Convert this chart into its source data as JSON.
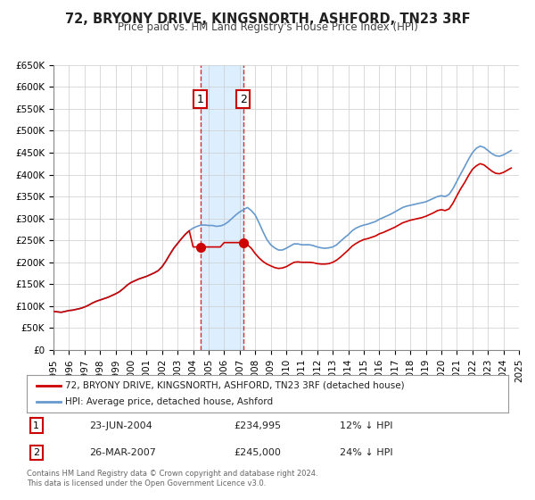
{
  "title": "72, BRYONY DRIVE, KINGSNORTH, ASHFORD, TN23 3RF",
  "subtitle": "Price paid vs. HM Land Registry's House Price Index (HPI)",
  "legend_line1": "72, BRYONY DRIVE, KINGSNORTH, ASHFORD, TN23 3RF (detached house)",
  "legend_line2": "HPI: Average price, detached house, Ashford",
  "sale1_label": "1",
  "sale1_date": "23-JUN-2004",
  "sale1_price": "£234,995",
  "sale1_hpi": "12% ↓ HPI",
  "sale1_year": 2004.47,
  "sale1_value": 234995,
  "sale2_label": "2",
  "sale2_date": "26-MAR-2007",
  "sale2_price": "£245,000",
  "sale2_hpi": "24% ↓ HPI",
  "sale2_year": 2007.23,
  "sale2_value": 245000,
  "property_color": "#cc0000",
  "hpi_color": "#6699cc",
  "background_color": "#ffffff",
  "grid_color": "#cccccc",
  "highlight_color": "#ddeeff",
  "ylim": [
    0,
    650000
  ],
  "xlim_start": 1995,
  "xlim_end": 2025,
  "yticks": [
    0,
    50000,
    100000,
    150000,
    200000,
    250000,
    300000,
    350000,
    400000,
    450000,
    500000,
    550000,
    600000,
    650000
  ],
  "ytick_labels": [
    "£0",
    "£50K",
    "£100K",
    "£150K",
    "£200K",
    "£250K",
    "£300K",
    "£350K",
    "£400K",
    "£450K",
    "£500K",
    "£550K",
    "£600K",
    "£650K"
  ],
  "copyright_text": "Contains HM Land Registry data © Crown copyright and database right 2024.\nThis data is licensed under the Open Government Licence v3.0.",
  "hpi_data_x": [
    1995.0,
    1995.25,
    1995.5,
    1995.75,
    1996.0,
    1996.25,
    1996.5,
    1996.75,
    1997.0,
    1997.25,
    1997.5,
    1997.75,
    1998.0,
    1998.25,
    1998.5,
    1998.75,
    1999.0,
    1999.25,
    1999.5,
    1999.75,
    2000.0,
    2000.25,
    2000.5,
    2000.75,
    2001.0,
    2001.25,
    2001.5,
    2001.75,
    2002.0,
    2002.25,
    2002.5,
    2002.75,
    2003.0,
    2003.25,
    2003.5,
    2003.75,
    2004.0,
    2004.25,
    2004.5,
    2004.75,
    2005.0,
    2005.25,
    2005.5,
    2005.75,
    2006.0,
    2006.25,
    2006.5,
    2006.75,
    2007.0,
    2007.25,
    2007.5,
    2007.75,
    2008.0,
    2008.25,
    2008.5,
    2008.75,
    2009.0,
    2009.25,
    2009.5,
    2009.75,
    2010.0,
    2010.25,
    2010.5,
    2010.75,
    2011.0,
    2011.25,
    2011.5,
    2011.75,
    2012.0,
    2012.25,
    2012.5,
    2012.75,
    2013.0,
    2013.25,
    2013.5,
    2013.75,
    2014.0,
    2014.25,
    2014.5,
    2014.75,
    2015.0,
    2015.25,
    2015.5,
    2015.75,
    2016.0,
    2016.25,
    2016.5,
    2016.75,
    2017.0,
    2017.25,
    2017.5,
    2017.75,
    2018.0,
    2018.25,
    2018.5,
    2018.75,
    2019.0,
    2019.25,
    2019.5,
    2019.75,
    2020.0,
    2020.25,
    2020.5,
    2020.75,
    2021.0,
    2021.25,
    2021.5,
    2021.75,
    2022.0,
    2022.25,
    2022.5,
    2022.75,
    2023.0,
    2023.25,
    2023.5,
    2023.75,
    2024.0,
    2024.25,
    2024.5
  ],
  "hpi_data_y": [
    88000,
    87000,
    86000,
    88000,
    90000,
    91000,
    93000,
    95000,
    98000,
    102000,
    107000,
    111000,
    114000,
    117000,
    120000,
    124000,
    128000,
    133000,
    140000,
    148000,
    154000,
    158000,
    162000,
    165000,
    168000,
    172000,
    176000,
    181000,
    190000,
    203000,
    218000,
    232000,
    243000,
    254000,
    264000,
    272000,
    278000,
    282000,
    285000,
    285000,
    284000,
    284000,
    282000,
    283000,
    286000,
    292000,
    300000,
    308000,
    315000,
    320000,
    325000,
    318000,
    308000,
    290000,
    270000,
    252000,
    240000,
    233000,
    228000,
    228000,
    232000,
    237000,
    242000,
    242000,
    240000,
    240000,
    240000,
    238000,
    235000,
    233000,
    232000,
    233000,
    235000,
    240000,
    248000,
    256000,
    263000,
    272000,
    278000,
    282000,
    285000,
    287000,
    290000,
    293000,
    298000,
    302000,
    306000,
    310000,
    315000,
    320000,
    325000,
    328000,
    330000,
    332000,
    334000,
    336000,
    338000,
    342000,
    346000,
    350000,
    352000,
    350000,
    355000,
    368000,
    385000,
    402000,
    418000,
    435000,
    450000,
    460000,
    465000,
    462000,
    455000,
    448000,
    443000,
    442000,
    445000,
    450000,
    455000
  ],
  "property_data_x": [
    1995.0,
    1995.25,
    1995.5,
    1995.75,
    1996.0,
    1996.25,
    1996.5,
    1996.75,
    1997.0,
    1997.25,
    1997.5,
    1997.75,
    1998.0,
    1998.25,
    1998.5,
    1998.75,
    1999.0,
    1999.25,
    1999.5,
    1999.75,
    2000.0,
    2000.25,
    2000.5,
    2000.75,
    2001.0,
    2001.25,
    2001.5,
    2001.75,
    2002.0,
    2002.25,
    2002.5,
    2002.75,
    2003.0,
    2003.25,
    2003.5,
    2003.75,
    2004.0,
    2004.25,
    2004.5,
    2004.75,
    2005.0,
    2005.25,
    2005.5,
    2005.75,
    2006.0,
    2006.25,
    2006.5,
    2006.75,
    2007.0,
    2007.25,
    2007.5,
    2007.75,
    2008.0,
    2008.25,
    2008.5,
    2008.75,
    2009.0,
    2009.25,
    2009.5,
    2009.75,
    2010.0,
    2010.25,
    2010.5,
    2010.75,
    2011.0,
    2011.25,
    2011.5,
    2011.75,
    2012.0,
    2012.25,
    2012.5,
    2012.75,
    2013.0,
    2013.25,
    2013.5,
    2013.75,
    2014.0,
    2014.25,
    2014.5,
    2014.75,
    2015.0,
    2015.25,
    2015.5,
    2015.75,
    2016.0,
    2016.25,
    2016.5,
    2016.75,
    2017.0,
    2017.25,
    2017.5,
    2017.75,
    2018.0,
    2018.25,
    2018.5,
    2018.75,
    2019.0,
    2019.25,
    2019.5,
    2019.75,
    2020.0,
    2020.25,
    2020.5,
    2020.75,
    2021.0,
    2021.25,
    2021.5,
    2021.75,
    2022.0,
    2022.25,
    2022.5,
    2022.75,
    2023.0,
    2023.25,
    2023.5,
    2023.75,
    2024.0,
    2024.25,
    2024.5
  ],
  "property_data_y": [
    88000,
    87000,
    86000,
    88000,
    90000,
    91000,
    93000,
    95000,
    98000,
    102000,
    107000,
    111000,
    114000,
    117000,
    120000,
    124000,
    128000,
    133000,
    140000,
    148000,
    154000,
    158000,
    162000,
    165000,
    168000,
    172000,
    176000,
    181000,
    190000,
    203000,
    218000,
    232000,
    243000,
    254000,
    264000,
    272000,
    234995,
    234995,
    234995,
    234995,
    234995,
    234995,
    234995,
    234995,
    245000,
    245000,
    245000,
    245000,
    245000,
    245000,
    240000,
    232000,
    220000,
    210000,
    202000,
    196000,
    192000,
    188000,
    186000,
    187000,
    190000,
    195000,
    200000,
    201000,
    200000,
    200000,
    200000,
    199000,
    197000,
    196000,
    196000,
    197000,
    200000,
    205000,
    212000,
    220000,
    228000,
    237000,
    243000,
    248000,
    252000,
    254000,
    257000,
    260000,
    265000,
    268000,
    272000,
    276000,
    280000,
    285000,
    290000,
    293000,
    296000,
    298000,
    300000,
    302000,
    305000,
    309000,
    313000,
    318000,
    320000,
    318000,
    322000,
    335000,
    352000,
    368000,
    382000,
    398000,
    412000,
    420000,
    425000,
    422000,
    415000,
    408000,
    403000,
    402000,
    405000,
    410000,
    415000
  ]
}
